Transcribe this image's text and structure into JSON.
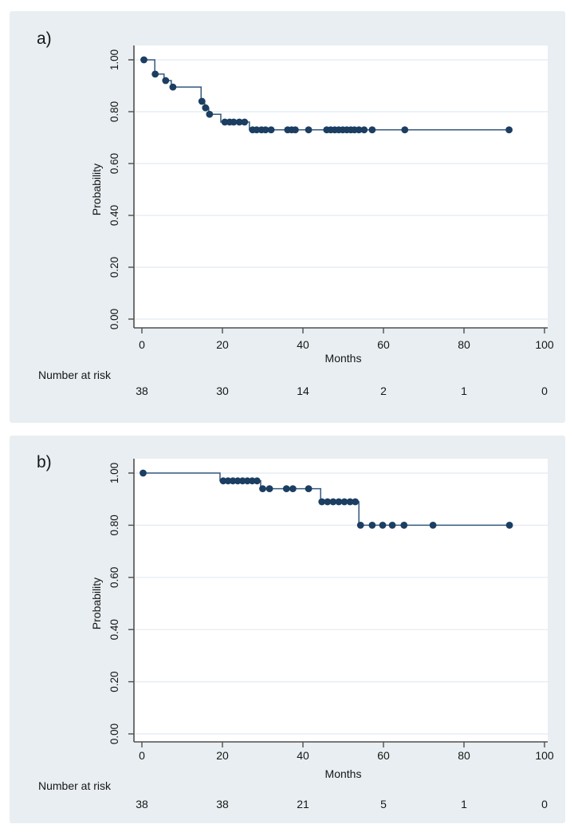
{
  "figure": {
    "description": "Two Kaplan-Meier survival plots stacked vertically",
    "background_color": "#e8eef1",
    "plot_background": "#ffffff"
  },
  "colors": {
    "card_bg": "#e8eef1",
    "plot_bg": "#ffffff",
    "curve_line": "#33587e",
    "censor_marker": "#1b3e62",
    "gridline": "#e2ebf3",
    "axis": "#4f4f4f",
    "text": "#161616"
  },
  "chart_data": [
    {
      "type": "line",
      "subtype": "kaplan-meier-step",
      "panel_label": "a)",
      "xlabel": "Months",
      "ylabel": "Probability",
      "xlim": [
        0,
        100
      ],
      "ylim": [
        0.0,
        1.0
      ],
      "xticks": [
        0,
        20,
        40,
        60,
        80,
        100
      ],
      "ytick_values": [
        0.0,
        0.2,
        0.4,
        0.6,
        0.8,
        1.0
      ],
      "ytick_labels": [
        "0.00",
        "0.20",
        "0.40",
        "0.60",
        "0.80",
        "1.00"
      ],
      "grid": "horizontal",
      "legend": "none",
      "steps": [
        [
          0,
          1.0
        ],
        [
          3.2,
          0.945
        ],
        [
          5.5,
          0.92
        ],
        [
          7.3,
          0.895
        ],
        [
          14.7,
          0.84
        ],
        [
          15.6,
          0.815
        ],
        [
          16.6,
          0.79
        ],
        [
          19.6,
          0.76
        ],
        [
          26.7,
          0.73
        ]
      ],
      "end_time": 91.2,
      "censor_marks": [
        [
          0.5,
          1.0
        ],
        [
          3.3,
          0.945
        ],
        [
          5.9,
          0.92
        ],
        [
          7.7,
          0.895
        ],
        [
          14.9,
          0.84
        ],
        [
          15.8,
          0.815
        ],
        [
          16.8,
          0.79
        ],
        [
          20.6,
          0.76
        ],
        [
          21.8,
          0.76
        ],
        [
          22.8,
          0.76
        ],
        [
          24.2,
          0.76
        ],
        [
          25.5,
          0.76
        ],
        [
          27.5,
          0.73
        ],
        [
          28.5,
          0.73
        ],
        [
          29.7,
          0.73
        ],
        [
          30.7,
          0.73
        ],
        [
          32.1,
          0.73
        ],
        [
          36.2,
          0.73
        ],
        [
          37.2,
          0.73
        ],
        [
          38.1,
          0.73
        ],
        [
          41.4,
          0.73
        ],
        [
          45.9,
          0.73
        ],
        [
          46.9,
          0.73
        ],
        [
          47.9,
          0.73
        ],
        [
          48.9,
          0.73
        ],
        [
          49.9,
          0.73
        ],
        [
          50.9,
          0.73
        ],
        [
          51.9,
          0.73
        ],
        [
          52.8,
          0.73
        ],
        [
          53.9,
          0.73
        ],
        [
          55.2,
          0.73
        ],
        [
          57.2,
          0.73
        ],
        [
          65.3,
          0.73
        ],
        [
          91.2,
          0.73
        ]
      ],
      "risk_table": {
        "label": "Number at risk",
        "times": [
          0,
          20,
          40,
          60,
          80,
          100
        ],
        "counts": [
          "38",
          "30",
          "14",
          "2",
          "1",
          "0"
        ]
      }
    },
    {
      "type": "line",
      "subtype": "kaplan-meier-step",
      "panel_label": "b)",
      "xlabel": "Months",
      "ylabel": "Probability",
      "xlim": [
        0,
        100
      ],
      "ylim": [
        0.0,
        1.0
      ],
      "xticks": [
        0,
        20,
        40,
        60,
        80,
        100
      ],
      "ytick_values": [
        0.0,
        0.2,
        0.4,
        0.6,
        0.8,
        1.0
      ],
      "ytick_labels": [
        "0.00",
        "0.20",
        "0.40",
        "0.60",
        "0.80",
        "1.00"
      ],
      "grid": "horizontal",
      "legend": "none",
      "steps": [
        [
          0,
          1.0
        ],
        [
          19.4,
          0.97
        ],
        [
          29.5,
          0.94
        ],
        [
          44.4,
          0.89
        ],
        [
          53.9,
          0.8
        ]
      ],
      "end_time": 91.3,
      "censor_marks": [
        [
          0.3,
          1.0
        ],
        [
          20.2,
          0.97
        ],
        [
          21.4,
          0.97
        ],
        [
          22.6,
          0.97
        ],
        [
          23.8,
          0.97
        ],
        [
          25.0,
          0.97
        ],
        [
          26.2,
          0.97
        ],
        [
          27.4,
          0.97
        ],
        [
          28.6,
          0.97
        ],
        [
          30.0,
          0.94
        ],
        [
          31.7,
          0.94
        ],
        [
          35.9,
          0.94
        ],
        [
          37.5,
          0.94
        ],
        [
          41.4,
          0.94
        ],
        [
          44.7,
          0.89
        ],
        [
          46.1,
          0.89
        ],
        [
          47.5,
          0.89
        ],
        [
          48.9,
          0.89
        ],
        [
          50.3,
          0.89
        ],
        [
          51.7,
          0.89
        ],
        [
          53.0,
          0.89
        ],
        [
          54.3,
          0.8
        ],
        [
          57.2,
          0.8
        ],
        [
          59.8,
          0.8
        ],
        [
          62.2,
          0.8
        ],
        [
          65.1,
          0.8
        ],
        [
          72.3,
          0.8
        ],
        [
          91.3,
          0.8
        ]
      ],
      "risk_table": {
        "label": "Number at risk",
        "times": [
          0,
          20,
          40,
          60,
          80,
          100
        ],
        "counts": [
          "38",
          "38",
          "21",
          "5",
          "1",
          "0"
        ]
      }
    }
  ]
}
